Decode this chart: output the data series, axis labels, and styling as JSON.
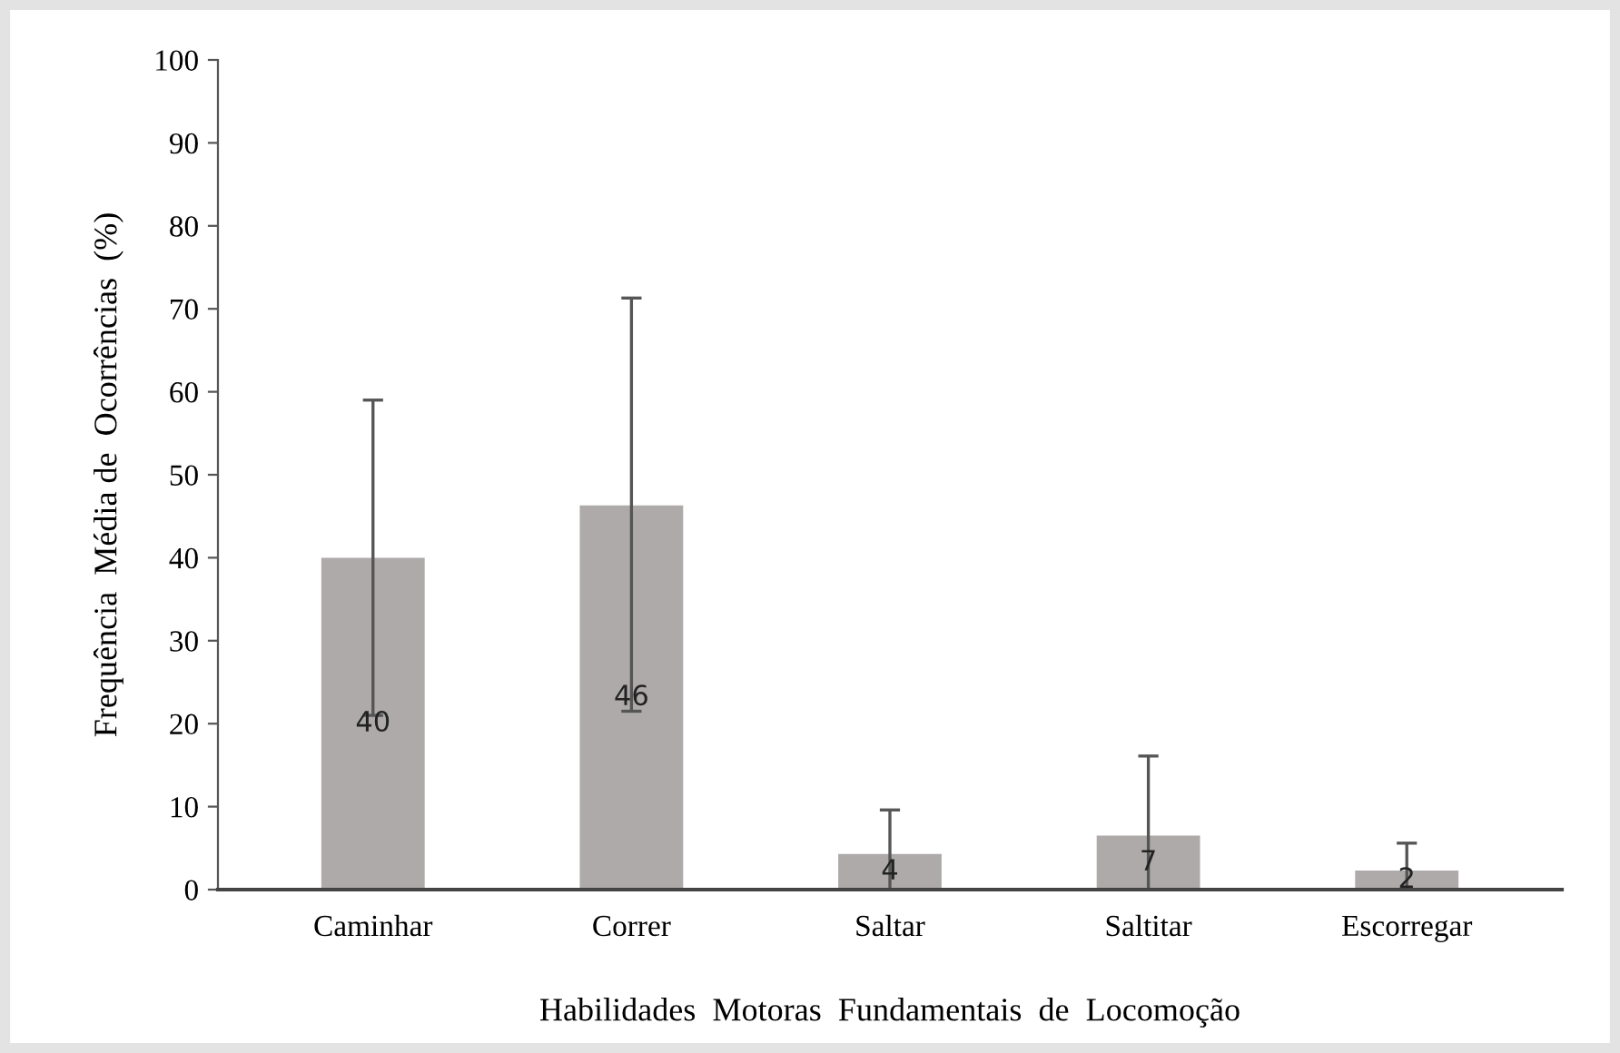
{
  "chart_data": {
    "type": "bar",
    "xlabel": "Habilidades  Motoras  Fundamentais  de  Locomoção",
    "ylabel": "Frequência  Média de  Ocorrências  (%)",
    "categories": [
      "Caminhar",
      "Correr",
      "Saltar",
      "Saltitar",
      "Escorregar"
    ],
    "values": [
      40,
      46.3,
      4.3,
      6.5,
      2.3
    ],
    "value_labels": [
      "40",
      "46",
      "4",
      "7",
      "2"
    ],
    "errors": [
      [
        21,
        59
      ],
      [
        21.5,
        71.3
      ],
      [
        0,
        9.6
      ],
      [
        0,
        16.1
      ],
      [
        0,
        5.6
      ]
    ],
    "color": "#aeaaaa",
    "ylim": [
      0,
      100
    ],
    "yticks": [
      0,
      10,
      20,
      30,
      40,
      50,
      60,
      70,
      80,
      90,
      100
    ],
    "grid": false
  }
}
